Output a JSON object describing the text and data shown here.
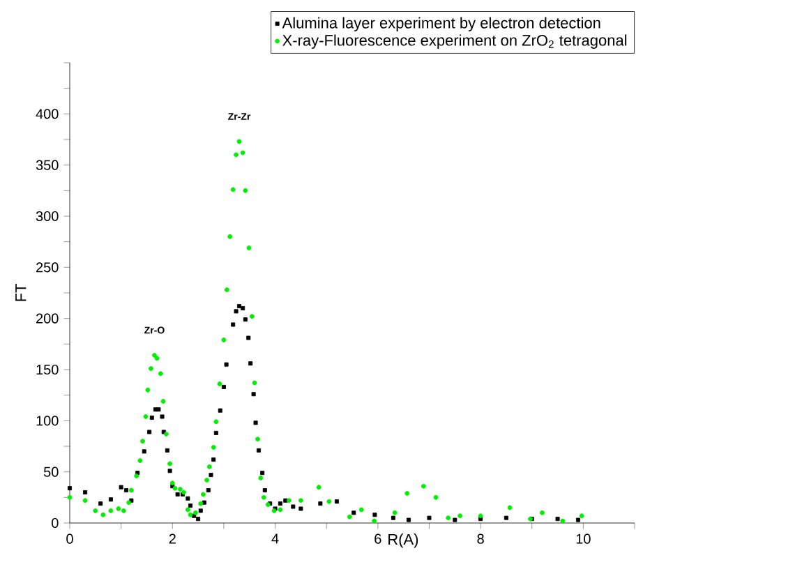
{
  "chart_data": {
    "type": "scatter",
    "xlabel": "R(A)",
    "ylabel": "FT",
    "xlim": [
      0,
      11
    ],
    "ylim": [
      0,
      450
    ],
    "xticks": [
      0,
      {
        "value": 1,
        "label": null
      },
      2,
      {
        "value": 3,
        "label": null
      },
      4,
      {
        "value": 5,
        "label": null
      },
      6,
      {
        "value": 7,
        "label": null
      },
      8,
      {
        "value": 9,
        "label": null
      },
      10,
      {
        "value": 11,
        "label": null
      }
    ],
    "yticks": [
      0,
      {
        "value": 25,
        "label": null
      },
      50,
      {
        "value": 75,
        "label": null
      },
      100,
      {
        "value": 125,
        "label": null
      },
      150,
      {
        "value": 175,
        "label": null
      },
      200,
      {
        "value": 225,
        "label": null
      },
      250,
      {
        "value": 275,
        "label": null
      },
      300,
      {
        "value": 325,
        "label": null
      },
      350,
      {
        "value": 375,
        "label": null
      },
      400,
      {
        "value": 425,
        "label": null
      },
      {
        "value": 450,
        "label": null
      }
    ],
    "legend": "top right",
    "grid": false,
    "annotations": [
      "Zr-O",
      "Zr-Zr"
    ],
    "series": [
      {
        "name": "Alumina layer experiment by electron detection",
        "color": "#000000",
        "marker": "square",
        "x": [
          0,
          0.3,
          0.6,
          0.8,
          1.0,
          1.1,
          1.2,
          1.32,
          1.45,
          1.55,
          1.6,
          1.67,
          1.73,
          1.8,
          1.83,
          1.9,
          1.95,
          2.0,
          2.1,
          2.2,
          2.3,
          2.35,
          2.42,
          2.5,
          2.55,
          2.62,
          2.7,
          2.75,
          2.8,
          2.85,
          2.93,
          3.0,
          3.05,
          3.18,
          3.24,
          3.3,
          3.37,
          3.42,
          3.48,
          3.52,
          3.58,
          3.62,
          3.68,
          3.75,
          3.8,
          3.9,
          4.0,
          4.1,
          4.2,
          4.35,
          4.5,
          4.88,
          5.2,
          5.53,
          5.94,
          6.3,
          6.6,
          7.0,
          7.5,
          8.0,
          8.5,
          9.0,
          9.5,
          9.9
        ],
        "values": [
          34,
          30,
          19,
          23,
          35,
          32,
          22,
          49,
          70,
          89,
          103,
          111,
          111,
          104,
          89,
          71,
          51,
          36,
          28,
          28,
          24,
          17,
          7,
          4,
          12,
          20,
          32,
          47,
          62,
          88,
          110,
          133,
          155,
          194,
          207,
          212,
          210,
          199,
          181,
          156,
          126,
          98,
          71,
          49,
          32,
          19,
          14,
          19,
          22,
          16,
          14,
          19,
          21,
          10,
          8,
          5,
          3,
          5,
          3,
          4,
          5,
          4,
          4,
          3
        ]
      },
      {
        "name": "X-ray-Fluorescence experiment on ZrO$_{2}$ tetragonal",
        "color": "#00ee00",
        "marker": "circle",
        "x": [
          0,
          0.3,
          0.5,
          0.65,
          0.8,
          0.95,
          1.05,
          1.15,
          1.2,
          1.3,
          1.37,
          1.42,
          1.48,
          1.52,
          1.58,
          1.65,
          1.7,
          1.77,
          1.82,
          1.88,
          1.95,
          2.0,
          2.05,
          2.15,
          2.22,
          2.3,
          2.35,
          2.45,
          2.55,
          2.6,
          2.67,
          2.72,
          2.8,
          2.85,
          2.92,
          3.0,
          3.06,
          3.12,
          3.18,
          3.24,
          3.3,
          3.37,
          3.42,
          3.49,
          3.55,
          3.6,
          3.66,
          3.72,
          3.78,
          3.86,
          3.98,
          4.1,
          4.27,
          4.5,
          4.85,
          5.05,
          5.45,
          5.68,
          5.93,
          6.33,
          6.57,
          6.89,
          7.13,
          7.37,
          7.6,
          8.0,
          8.57,
          8.97,
          9.2,
          9.6,
          9.97
        ],
        "values": [
          25,
          22,
          12,
          8,
          12,
          14,
          12,
          20,
          32,
          46,
          61,
          80,
          104,
          130,
          151,
          164,
          161,
          146,
          119,
          87,
          58,
          39,
          34,
          33,
          30,
          13,
          8,
          10,
          19,
          28,
          42,
          55,
          74,
          99,
          136,
          179,
          228,
          280,
          326,
          360,
          373,
          362,
          325,
          269,
          202,
          137,
          82,
          44,
          25,
          18,
          12,
          13,
          22,
          22,
          35,
          21,
          6,
          13,
          2,
          10,
          29,
          36,
          25,
          5,
          7,
          7,
          15,
          4,
          10,
          2,
          7
        ]
      }
    ]
  }
}
